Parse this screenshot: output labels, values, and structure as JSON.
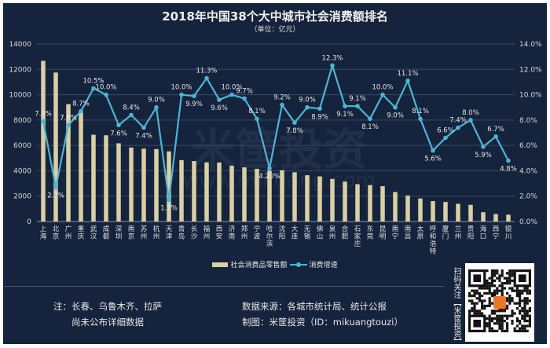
{
  "chart_data": {
    "type": "bar+line",
    "title": "2018年中国38个大中城市社会消费额排名",
    "subtitle": "（单位：亿元）",
    "categories": [
      "上海",
      "北京",
      "广州",
      "重庆",
      "武汉",
      "成都",
      "深圳",
      "南京",
      "苏州",
      "杭州",
      "天津",
      "青岛",
      "长沙",
      "福州",
      "西安",
      "济南",
      "郑州",
      "宁波",
      "哈尔滨",
      "沈阳",
      "大连",
      "无锡",
      "佛山",
      "泉州",
      "合肥",
      "石家庄",
      "东莞",
      "昆明",
      "南宁",
      "南昌",
      "太原",
      "呼和浩特",
      "厦门",
      "兰州",
      "贵阳",
      "海口",
      "西宁",
      "银川"
    ],
    "series": [
      {
        "name": "社会消费品零售额",
        "type": "bar",
        "axis": "left",
        "color": "#d9cfa5",
        "values": [
          12669,
          11748,
          9256,
          8770,
          6843,
          6801,
          6169,
          5833,
          5747,
          5715,
          5533,
          4842,
          4766,
          4666,
          4659,
          4405,
          4268,
          4155,
          4020,
          4051,
          3880,
          3651,
          3555,
          3359,
          3148,
          2943,
          2870,
          2787,
          2326,
          2050,
          1817,
          1608,
          1542,
          1400,
          1315,
          730,
          590,
          540
        ]
      },
      {
        "name": "消费增速",
        "type": "line",
        "axis": "right",
        "color": "#4fb3d1",
        "values": [
          7.9,
          2.7,
          7.6,
          8.7,
          10.5,
          10.0,
          7.6,
          8.4,
          7.4,
          9.0,
          1.7,
          10.0,
          9.9,
          11.3,
          9.6,
          10.0,
          9.7,
          8.1,
          4.2,
          9.2,
          7.8,
          9.0,
          8.9,
          12.3,
          9.1,
          9.1,
          8.1,
          10.0,
          9.0,
          11.1,
          8.1,
          5.6,
          6.6,
          7.4,
          8.0,
          5.9,
          6.7,
          4.8
        ],
        "labels": [
          "7.9%",
          "2.7%",
          "7.6%",
          "8.7%",
          "10.5%",
          "10.0%",
          "7.6%",
          "8.4%",
          "7.4%",
          "9.0%",
          "1.7%",
          "10.0%",
          "9.9%",
          "11.3%",
          "9.6%",
          "10.0%",
          "9.7%",
          "8.1%",
          "4.20%",
          "9.2%",
          "7.8%",
          "9.0%",
          "8.9%",
          "12.3%",
          "9.1%",
          "9.1%",
          "8.1%",
          "10.0%",
          "9.0%",
          "11.1%",
          "8.1%",
          "5.6%",
          "6.6%",
          "7.4%",
          "8.0%",
          "5.9%",
          "6.7%",
          "4.8%"
        ]
      }
    ],
    "left_axis": {
      "range": [
        0,
        14000
      ],
      "ticks": [
        "0",
        "2000",
        "4000",
        "6000",
        "8000",
        "10000",
        "12000",
        "14000"
      ]
    },
    "right_axis": {
      "range": [
        0,
        14
      ],
      "ticks": [
        "0.0%",
        "2.0%",
        "4.0%",
        "6.0%",
        "8.0%",
        "10.0%",
        "12.0%",
        "14.0%"
      ]
    },
    "grid": true,
    "legend_position": "bottom"
  },
  "legend": {
    "bar_label": "社会消费品零售额",
    "line_label": "消费增速"
  },
  "footer": {
    "note_line1": "注：长春、乌鲁木齐、拉萨",
    "note_line2": "尚未公布详细数据",
    "source": "数据来源：各城市统计局、统计公报",
    "credit": "制图：米筐投资（ID：mikuangtouzi）",
    "qr_caption": "扫码关注【米筐投资】"
  },
  "watermark": "米筐投资 www.mikuang.com",
  "colors": {
    "background": "#15233d",
    "bar": "#d9cfa5",
    "line": "#4fb3d1",
    "grid": "#3a4a66",
    "text": "#e6e6e6"
  }
}
